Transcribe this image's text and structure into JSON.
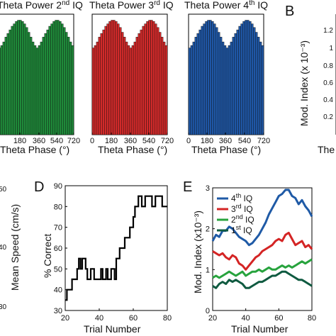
{
  "colors": {
    "green": "#1f8a3a",
    "red": "#d12a2a",
    "blue": "#1f57a6",
    "series_E": [
      "#1f5aa6",
      "#d42424",
      "#27a33d",
      "#0f5a40"
    ]
  },
  "panel_letters": {
    "B": "B",
    "D": "D",
    "E": "E"
  },
  "chart_data": [
    {
      "id": "hist-2nd",
      "type": "bar",
      "title_prefix": "Theta Power 2",
      "title_sup": "nd",
      "title_suffix": " IQ",
      "xlabel": "Theta Phase (°)",
      "xticks": [
        "180",
        "360",
        "540",
        "720"
      ],
      "color": "#1f8a3a",
      "values": [
        0.72,
        0.74,
        0.77,
        0.81,
        0.84,
        0.87,
        0.9,
        0.92,
        0.94,
        0.95,
        0.95,
        0.94,
        0.92,
        0.89,
        0.85,
        0.81,
        0.77,
        0.74,
        0.72,
        0.74,
        0.77,
        0.81,
        0.84,
        0.87,
        0.9,
        0.92,
        0.94,
        0.95,
        0.95,
        0.94,
        0.92,
        0.89,
        0.85,
        0.81,
        0.77,
        0.74
      ]
    },
    {
      "id": "hist-3rd",
      "type": "bar",
      "title_prefix": "Theta Power 3",
      "title_sup": "rd",
      "title_suffix": " IQ",
      "xlabel": "Theta Phase (°)",
      "xticks": [
        "0",
        "180",
        "360",
        "540",
        "720"
      ],
      "color": "#d12a2a",
      "values": [
        0.72,
        0.74,
        0.77,
        0.81,
        0.84,
        0.87,
        0.9,
        0.92,
        0.94,
        0.95,
        0.95,
        0.94,
        0.92,
        0.89,
        0.85,
        0.81,
        0.77,
        0.74,
        0.72,
        0.74,
        0.77,
        0.81,
        0.84,
        0.87,
        0.9,
        0.92,
        0.94,
        0.95,
        0.95,
        0.94,
        0.92,
        0.89,
        0.85,
        0.81,
        0.77,
        0.74
      ]
    },
    {
      "id": "hist-4th",
      "type": "bar",
      "title_prefix": "Theta Power 4",
      "title_sup": "th",
      "title_suffix": " IQ",
      "xlabel": "Theta Phase (°)",
      "xticks": [
        "0",
        "180",
        "360",
        "540",
        "720"
      ],
      "color": "#1f57a6",
      "values": [
        0.72,
        0.74,
        0.77,
        0.81,
        0.84,
        0.87,
        0.9,
        0.92,
        0.94,
        0.95,
        0.95,
        0.94,
        0.92,
        0.89,
        0.85,
        0.81,
        0.77,
        0.74,
        0.72,
        0.74,
        0.77,
        0.81,
        0.84,
        0.87,
        0.9,
        0.92,
        0.94,
        0.95,
        0.95,
        0.94,
        0.92,
        0.89,
        0.85,
        0.81,
        0.77,
        0.74
      ]
    },
    {
      "id": "panel-B",
      "type": "bar",
      "ylabel": "Mod. Index (x 10⁻³)",
      "yticks": [
        "1.2",
        "1",
        "0.8",
        "0.6",
        "0.4",
        "0.2"
      ],
      "xlabel_partial": "The",
      "ylim": [
        0,
        1.35
      ]
    },
    {
      "id": "panel-C-partial",
      "type": "line",
      "ylabel": "Mean Speed (cm/s)",
      "yticks": [
        "50",
        "40",
        "30"
      ]
    },
    {
      "id": "panel-D",
      "type": "line",
      "xlabel": "Trial Number",
      "ylabel": "% Correct",
      "xlim": [
        20,
        80
      ],
      "ylim": [
        30,
        90
      ],
      "xticks": [
        "20",
        "40",
        "60",
        "80"
      ],
      "yticks": [
        "30",
        "40",
        "50",
        "60",
        "70",
        "80",
        "90"
      ],
      "color": "#000000",
      "x": [
        20,
        21,
        22,
        23,
        24,
        25,
        26,
        27,
        28,
        29,
        30,
        31,
        32,
        33,
        34,
        35,
        36,
        37,
        38,
        39,
        40,
        41,
        42,
        43,
        44,
        45,
        46,
        47,
        48,
        49,
        50,
        51,
        52,
        53,
        54,
        55,
        56,
        57,
        58,
        59,
        60,
        61,
        62,
        63,
        64,
        65,
        66,
        67,
        68,
        69,
        70,
        71,
        72,
        73,
        74,
        75,
        76,
        77,
        78,
        79,
        80
      ],
      "y": [
        35,
        40,
        40,
        40,
        45,
        45,
        45,
        50,
        55,
        50,
        55,
        55,
        50,
        45,
        45,
        50,
        50,
        45,
        45,
        45,
        45,
        50,
        45,
        45,
        50,
        45,
        45,
        50,
        50,
        45,
        55,
        55,
        60,
        60,
        60,
        65,
        65,
        65,
        70,
        70,
        75,
        80,
        80,
        85,
        85,
        80,
        80,
        85,
        85,
        85,
        85,
        80,
        80,
        85,
        85,
        85,
        85,
        80,
        80,
        80,
        80
      ]
    },
    {
      "id": "panel-E",
      "type": "line",
      "xlabel": "Trial Number",
      "ylabel": "Mod. Index (x10⁻³)",
      "xlim": [
        20,
        80
      ],
      "ylim": [
        0,
        3
      ],
      "xticks": [
        "20",
        "40",
        "60",
        "80"
      ],
      "yticks": [
        "0",
        "1",
        "2",
        "3"
      ],
      "series": [
        {
          "name_base": "4",
          "name_sup": "th",
          "name_suffix": " IQ",
          "x": [
            20,
            22,
            24,
            26,
            28,
            30,
            32,
            34,
            36,
            38,
            40,
            42,
            44,
            46,
            48,
            50,
            52,
            54,
            56,
            58,
            60,
            62,
            64,
            66,
            68,
            70,
            72,
            74,
            76,
            78,
            80
          ],
          "y": [
            1.7,
            1.85,
            1.8,
            1.95,
            1.95,
            2.05,
            2.0,
            1.9,
            1.8,
            1.75,
            1.7,
            1.6,
            1.65,
            1.75,
            1.85,
            2.0,
            2.15,
            2.35,
            2.5,
            2.65,
            2.8,
            2.85,
            2.95,
            2.95,
            2.8,
            2.75,
            2.6,
            2.7,
            2.55,
            2.45,
            2.3
          ]
        },
        {
          "name_base": "3",
          "name_sup": "rd",
          "name_suffix": " IQ",
          "x": [
            20,
            22,
            24,
            26,
            28,
            30,
            32,
            34,
            36,
            38,
            40,
            42,
            44,
            46,
            48,
            50,
            52,
            54,
            56,
            58,
            60,
            62,
            64,
            66,
            68,
            70,
            72,
            74,
            76,
            78,
            80
          ],
          "y": [
            1.45,
            1.4,
            1.35,
            1.4,
            1.3,
            1.25,
            1.35,
            1.3,
            1.15,
            1.1,
            1.0,
            1.1,
            1.2,
            1.3,
            1.35,
            1.45,
            1.5,
            1.55,
            1.6,
            1.7,
            1.75,
            1.7,
            1.85,
            1.9,
            1.75,
            1.6,
            1.65,
            1.7,
            1.55,
            1.6,
            1.5
          ]
        },
        {
          "name_base": "2",
          "name_sup": "nd",
          "name_suffix": " IQ",
          "x": [
            20,
            22,
            24,
            26,
            28,
            30,
            32,
            34,
            36,
            38,
            40,
            42,
            44,
            46,
            48,
            50,
            52,
            54,
            56,
            58,
            60,
            62,
            64,
            66,
            68,
            70,
            72,
            74,
            76,
            78,
            80
          ],
          "y": [
            0.8,
            0.85,
            0.8,
            0.85,
            0.9,
            0.95,
            0.9,
            0.85,
            0.9,
            0.95,
            0.85,
            0.9,
            0.95,
            0.95,
            1.0,
            0.95,
            1.0,
            1.05,
            1.0,
            1.0,
            1.05,
            1.1,
            1.05,
            1.1,
            1.05,
            1.1,
            1.15,
            1.2,
            1.15,
            1.2,
            1.25
          ]
        },
        {
          "name_base": "1",
          "name_sup": "st",
          "name_suffix": " IQ",
          "x": [
            20,
            22,
            24,
            26,
            28,
            30,
            32,
            34,
            36,
            38,
            40,
            42,
            44,
            46,
            48,
            50,
            52,
            54,
            56,
            58,
            60,
            62,
            64,
            66,
            68,
            70,
            72,
            74,
            76,
            78,
            80
          ],
          "y": [
            0.6,
            0.55,
            0.65,
            0.7,
            0.65,
            0.75,
            0.7,
            0.75,
            0.7,
            0.65,
            0.55,
            0.55,
            0.6,
            0.65,
            0.7,
            0.7,
            0.75,
            0.8,
            0.85,
            0.85,
            0.9,
            0.95,
            0.95,
            0.9,
            0.85,
            0.8,
            0.75,
            0.75,
            0.7,
            0.65,
            0.6
          ]
        }
      ]
    }
  ]
}
